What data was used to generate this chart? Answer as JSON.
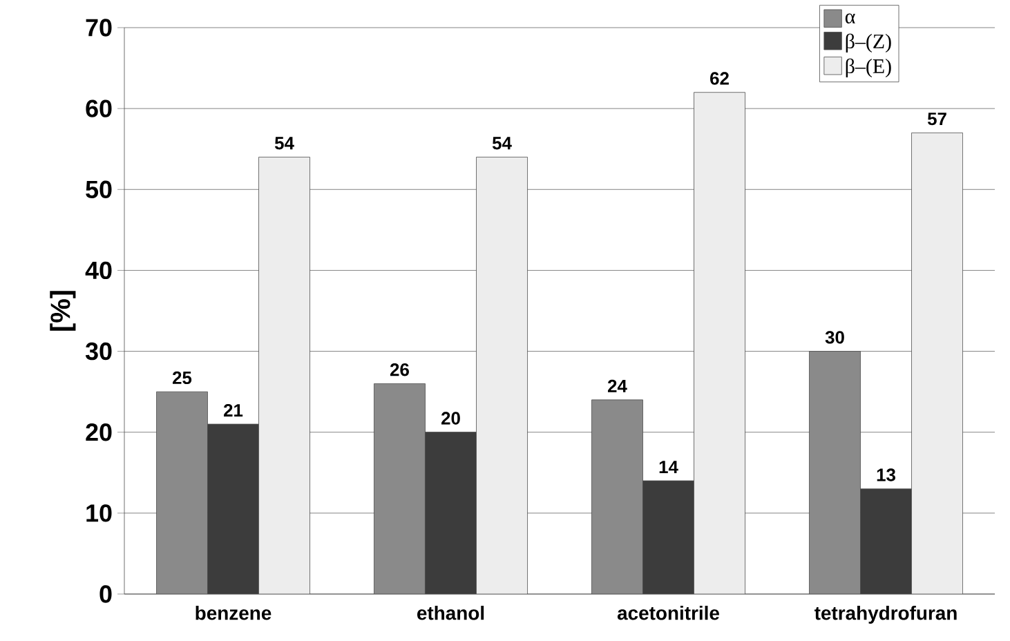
{
  "chart_data": {
    "type": "bar",
    "ylabel": "[%]",
    "categories": [
      "benzene",
      "ethanol",
      "acetonitrile",
      "tetrahydrofuran"
    ],
    "series": [
      {
        "name": "α",
        "color": "#8a8a8a",
        "values": [
          25,
          26,
          24,
          30
        ]
      },
      {
        "name": "β–(Z)",
        "color": "#3c3c3c",
        "values": [
          21,
          20,
          14,
          13
        ]
      },
      {
        "name": "β–(E)",
        "color": "#ededed",
        "values": [
          54,
          54,
          62,
          57
        ]
      }
    ],
    "ylim": [
      0,
      70
    ],
    "yticks": [
      0,
      10,
      20,
      30,
      40,
      50,
      60,
      70
    ],
    "grid": "y",
    "legend": "top right",
    "data_labels": true
  }
}
